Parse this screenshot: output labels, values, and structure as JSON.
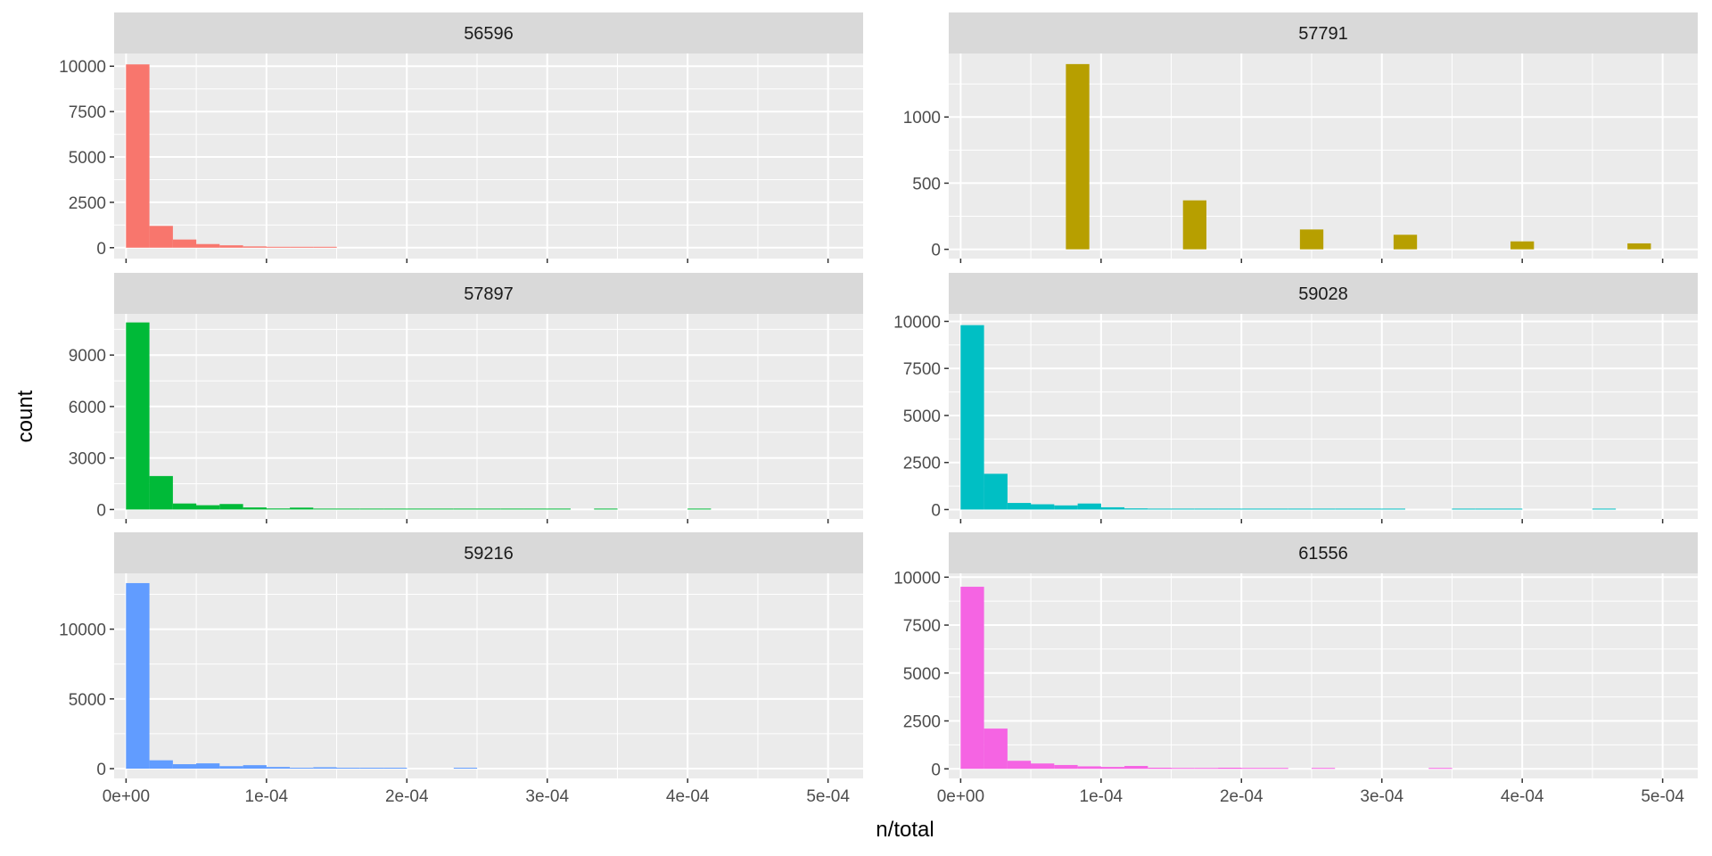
{
  "chart_data": {
    "type": "bar",
    "xlabel": "n/total",
    "ylabel": "count",
    "x_ticks": [
      "0e+00",
      "1e-04",
      "2e-04",
      "3e-04",
      "4e-04",
      "5e-04"
    ],
    "x_tick_values": [
      0,
      0.0001,
      0.0002,
      0.0003,
      0.0004,
      0.0005
    ],
    "xlim": [
      -8.5e-06,
      0.000525
    ],
    "bin_width": 1.67e-05,
    "grid": true,
    "panels": [
      {
        "title": "56596",
        "color": "#F8766D",
        "ylim": [
          -600,
          10700
        ],
        "y_ticks": [
          "0",
          "2500",
          "5000",
          "7500",
          "10000"
        ],
        "y_tick_values": [
          0,
          2500,
          5000,
          7500,
          10000
        ],
        "bins": [
          {
            "x": 8.3e-06,
            "count": 10100
          },
          {
            "x": 2.5e-05,
            "count": 1200
          },
          {
            "x": 4.17e-05,
            "count": 450
          },
          {
            "x": 5.83e-05,
            "count": 200
          },
          {
            "x": 7.5e-05,
            "count": 130
          },
          {
            "x": 9.17e-05,
            "count": 70
          },
          {
            "x": 0.0001083,
            "count": 40
          },
          {
            "x": 0.000125,
            "count": 25
          },
          {
            "x": 0.0001417,
            "count": 15
          }
        ]
      },
      {
        "title": "57791",
        "color": "#B79F00",
        "ylim": [
          -70,
          1480
        ],
        "y_ticks": [
          "0",
          "500",
          "1000"
        ],
        "y_tick_values": [
          0,
          500,
          1000
        ],
        "bins": [
          {
            "x": 8.33e-05,
            "count": 1400
          },
          {
            "x": 0.0001667,
            "count": 370
          },
          {
            "x": 0.00025,
            "count": 150
          },
          {
            "x": 0.0003167,
            "count": 110
          },
          {
            "x": 0.0004,
            "count": 60
          },
          {
            "x": 0.0004833,
            "count": 45
          }
        ]
      },
      {
        "title": "57897",
        "color": "#00BA38",
        "ylim": [
          -550,
          11400
        ],
        "y_ticks": [
          "0",
          "3000",
          "6000",
          "9000"
        ],
        "y_tick_values": [
          0,
          3000,
          6000,
          9000
        ],
        "bins": [
          {
            "x": 8.3e-06,
            "count": 10900
          },
          {
            "x": 2.5e-05,
            "count": 1950
          },
          {
            "x": 4.17e-05,
            "count": 350
          },
          {
            "x": 5.83e-05,
            "count": 250
          },
          {
            "x": 7.5e-05,
            "count": 320
          },
          {
            "x": 9.17e-05,
            "count": 120
          },
          {
            "x": 0.0001083,
            "count": 60
          },
          {
            "x": 0.000125,
            "count": 110
          },
          {
            "x": 0.0001417,
            "count": 20
          },
          {
            "x": 0.0001583,
            "count": 15
          },
          {
            "x": 0.000175,
            "count": 12
          },
          {
            "x": 0.0001917,
            "count": 10
          },
          {
            "x": 0.0002083,
            "count": 10
          },
          {
            "x": 0.000225,
            "count": 8
          },
          {
            "x": 0.0002417,
            "count": 8
          },
          {
            "x": 0.0002583,
            "count": 6
          },
          {
            "x": 0.000275,
            "count": 6
          },
          {
            "x": 0.0002917,
            "count": 5
          },
          {
            "x": 0.0003083,
            "count": 5
          },
          {
            "x": 0.0003417,
            "count": 10
          },
          {
            "x": 0.0004083,
            "count": 8
          }
        ]
      },
      {
        "title": "59028",
        "color": "#00BFC4",
        "ylim": [
          -500,
          10400
        ],
        "y_ticks": [
          "0",
          "2500",
          "5000",
          "7500",
          "10000"
        ],
        "y_tick_values": [
          0,
          2500,
          5000,
          7500,
          10000
        ],
        "bins": [
          {
            "x": 8.3e-06,
            "count": 9800
          },
          {
            "x": 2.5e-05,
            "count": 1900
          },
          {
            "x": 4.17e-05,
            "count": 350
          },
          {
            "x": 5.83e-05,
            "count": 280
          },
          {
            "x": 7.5e-05,
            "count": 220
          },
          {
            "x": 9.17e-05,
            "count": 320
          },
          {
            "x": 0.0001083,
            "count": 120
          },
          {
            "x": 0.000125,
            "count": 60
          },
          {
            "x": 0.0001417,
            "count": 40
          },
          {
            "x": 0.0001583,
            "count": 30
          },
          {
            "x": 0.000175,
            "count": 15
          },
          {
            "x": 0.0001917,
            "count": 12
          },
          {
            "x": 0.0002083,
            "count": 10
          },
          {
            "x": 0.000225,
            "count": 10
          },
          {
            "x": 0.0002417,
            "count": 8
          },
          {
            "x": 0.0002583,
            "count": 8
          },
          {
            "x": 0.000275,
            "count": 6
          },
          {
            "x": 0.0002917,
            "count": 6
          },
          {
            "x": 0.0003083,
            "count": 5
          },
          {
            "x": 0.0003583,
            "count": 5
          },
          {
            "x": 0.000375,
            "count": 5
          },
          {
            "x": 0.0003917,
            "count": 5
          },
          {
            "x": 0.0004583,
            "count": 8
          }
        ]
      },
      {
        "title": "59216",
        "color": "#619CFF",
        "ylim": [
          -700,
          14000
        ],
        "y_ticks": [
          "0",
          "5000",
          "10000"
        ],
        "y_tick_values": [
          0,
          5000,
          10000
        ],
        "bins": [
          {
            "x": 8.3e-06,
            "count": 13300
          },
          {
            "x": 2.5e-05,
            "count": 600
          },
          {
            "x": 4.17e-05,
            "count": 320
          },
          {
            "x": 5.83e-05,
            "count": 380
          },
          {
            "x": 7.5e-05,
            "count": 180
          },
          {
            "x": 9.17e-05,
            "count": 250
          },
          {
            "x": 0.0001083,
            "count": 120
          },
          {
            "x": 0.000125,
            "count": 60
          },
          {
            "x": 0.0001417,
            "count": 100
          },
          {
            "x": 0.0001583,
            "count": 40
          },
          {
            "x": 0.000175,
            "count": 30
          },
          {
            "x": 0.0001917,
            "count": 20
          },
          {
            "x": 0.0002417,
            "count": 25
          }
        ]
      },
      {
        "title": "61556",
        "color": "#F564E3",
        "ylim": [
          -500,
          10200
        ],
        "y_ticks": [
          "0",
          "2500",
          "5000",
          "7500",
          "10000"
        ],
        "y_tick_values": [
          0,
          2500,
          5000,
          7500,
          10000
        ],
        "bins": [
          {
            "x": 8.3e-06,
            "count": 9500
          },
          {
            "x": 2.5e-05,
            "count": 2100
          },
          {
            "x": 4.17e-05,
            "count": 420
          },
          {
            "x": 5.83e-05,
            "count": 280
          },
          {
            "x": 7.5e-05,
            "count": 200
          },
          {
            "x": 9.17e-05,
            "count": 130
          },
          {
            "x": 0.0001083,
            "count": 100
          },
          {
            "x": 0.000125,
            "count": 150
          },
          {
            "x": 0.0001417,
            "count": 60
          },
          {
            "x": 0.0001583,
            "count": 30
          },
          {
            "x": 0.000175,
            "count": 20
          },
          {
            "x": 0.0001917,
            "count": 60
          },
          {
            "x": 0.0002083,
            "count": 30
          },
          {
            "x": 0.000225,
            "count": 20
          },
          {
            "x": 0.0002583,
            "count": 40
          },
          {
            "x": 0.0003417,
            "count": 30
          }
        ]
      }
    ]
  }
}
